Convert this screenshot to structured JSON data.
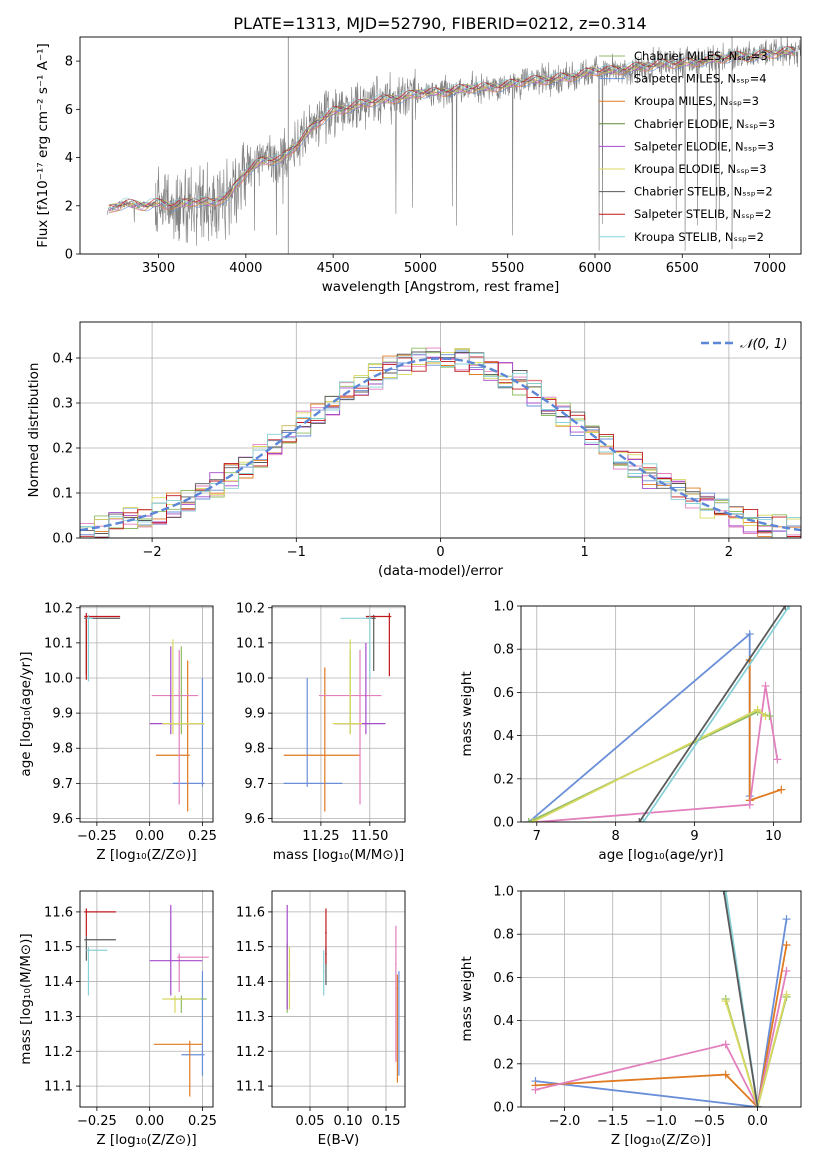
{
  "figure": {
    "title": "PLATE=1313, MJD=52790, FIBERID=0212, z=0.314"
  },
  "colors": {
    "blue": "#6a8fd8",
    "orange": "#e07a20",
    "pink": "#e27fbd",
    "green": "#8fbc62",
    "purple": "#a54bcb",
    "yellow": "#d8d860",
    "grey": "#5a5a5a",
    "red": "#c0171d",
    "cyan": "#88d2d8",
    "spectrum": "#808080",
    "gaussian": "#5c86d6",
    "grid": "#b0b0b0"
  },
  "chart_data": [
    {
      "id": "spectrum",
      "type": "line",
      "xlabel": "wavelength [Angstrom, rest frame]",
      "ylabel": "Flux [fλ10⁻¹⁷ erg cm⁻² s⁻¹ A⁻¹]",
      "xlim": [
        3050,
        7180
      ],
      "ylim": [
        0,
        9
      ],
      "xticks": [
        3500,
        4000,
        4500,
        5000,
        5500,
        6000,
        6500,
        7000
      ],
      "yticks": [
        0,
        2,
        4,
        6,
        8
      ],
      "grid": false,
      "legend_placement": "right",
      "legend": [
        {
          "text": "Chabrier MILES, Nₛₛₚ=3",
          "color": "#8fbc62"
        },
        {
          "text": "Salpeter MILES, Nₛₛₚ=4",
          "color": "#6a8fd8"
        },
        {
          "text": "Kroupa MILES, Nₛₛₚ=3",
          "color": "#e07a20"
        },
        {
          "text": "Chabrier ELODIE, Nₛₛₚ=3",
          "color": "#5e8a3a"
        },
        {
          "text": "Salpeter ELODIE, Nₛₛₚ=3",
          "color": "#a54bcb"
        },
        {
          "text": "Kroupa ELODIE, Nₛₛₚ=3",
          "color": "#d8d860"
        },
        {
          "text": "Chabrier STELIB, Nₛₛₚ=2",
          "color": "#5a5a5a"
        },
        {
          "text": "Salpeter STELIB, Nₛₛₚ=2",
          "color": "#c0171d"
        },
        {
          "text": "Kroupa STELIB, Nₛₛₚ=2",
          "color": "#88d2d8"
        }
      ],
      "model_continuum": {
        "x": [
          3200,
          3300,
          3400,
          3500,
          3600,
          3700,
          3800,
          3900,
          4000,
          4100,
          4200,
          4300,
          4400,
          4500,
          4600,
          4700,
          4800,
          4900,
          5000,
          5100,
          5200,
          5300,
          5400,
          5500,
          5600,
          5700,
          5800,
          5900,
          6000,
          6100,
          6200,
          6300,
          6400,
          6500,
          6600,
          6700,
          6800,
          6900,
          7000,
          7100
        ],
        "y": [
          1.8,
          2.1,
          2.0,
          2.1,
          2.0,
          2.2,
          2.1,
          2.4,
          3.4,
          3.9,
          3.9,
          4.6,
          5.4,
          5.9,
          6.1,
          6.3,
          6.4,
          6.5,
          6.7,
          6.7,
          6.8,
          6.9,
          6.9,
          7.0,
          7.2,
          7.2,
          7.3,
          7.4,
          7.6,
          7.6,
          7.7,
          7.8,
          7.9,
          7.9,
          8.0,
          8.1,
          8.2,
          8.2,
          8.3,
          8.4
        ]
      }
    },
    {
      "id": "residuals",
      "type": "histogram",
      "xlabel": "(data-model)/error",
      "ylabel": "Normed distribution",
      "xlim": [
        -2.5,
        2.5
      ],
      "ylim": [
        0,
        0.48
      ],
      "xticks": [
        -2,
        -1,
        0,
        1,
        2
      ],
      "yticks": [
        0.0,
        0.1,
        0.2,
        0.3,
        0.4
      ],
      "grid": true,
      "legend_placement": "top-right",
      "legend": [
        {
          "text": "𝒩(0, 1)",
          "color": "#5c86d6"
        }
      ],
      "bin_width": 0.1
    },
    {
      "id": "age_vs_Z",
      "type": "scatter",
      "xlabel": "Z [log₁₀(Z/Z⊙)]",
      "ylabel": "age  [log₁₀(age/yr)]",
      "xlim": [
        -0.33,
        0.3
      ],
      "ylim": [
        9.59,
        10.205
      ],
      "xticks": [
        -0.25,
        0.0,
        0.25
      ],
      "yticks": [
        9.6,
        9.7,
        9.8,
        9.9,
        10.0,
        10.1,
        10.2
      ],
      "grid": true
    },
    {
      "id": "age_vs_mass",
      "type": "scatter",
      "xlabel": "mass [log₁₀(M/M⊙)]",
      "ylabel": "",
      "xlim": [
        11.0,
        11.68
      ],
      "ylim": [
        9.59,
        10.205
      ],
      "xticks": [
        11.25,
        11.5
      ],
      "yticks": [
        9.6,
        9.7,
        9.8,
        9.9,
        10.0,
        10.1,
        10.2
      ],
      "grid": true
    },
    {
      "id": "weight_vs_age",
      "type": "line",
      "xlabel": "age  [log₁₀(age/yr)]",
      "ylabel": "mass weight",
      "xlim": [
        6.8,
        10.35
      ],
      "ylim": [
        0,
        1.0
      ],
      "xticks": [
        7,
        8,
        9,
        10
      ],
      "yticks": [
        0.0,
        0.2,
        0.4,
        0.6,
        0.8,
        1.0
      ],
      "grid": true,
      "series": [
        {
          "color": "#6a8fd8",
          "x": [
            6.9,
            9.7,
            9.7
          ],
          "y": [
            0.0,
            0.87,
            0.12
          ]
        },
        {
          "color": "#e07a20",
          "x": [
            9.7,
            9.7,
            10.1
          ],
          "y": [
            0.75,
            0.1,
            0.15
          ]
        },
        {
          "color": "#e27fbd",
          "x": [
            7.0,
            9.7,
            9.9,
            10.05
          ],
          "y": [
            0.0,
            0.08,
            0.63,
            0.29
          ]
        },
        {
          "color": "#8fbc62",
          "x": [
            6.9,
            9.8,
            9.95
          ],
          "y": [
            0.0,
            0.51,
            0.49
          ]
        },
        {
          "color": "#d8d860",
          "x": [
            6.95,
            9.8,
            9.9
          ],
          "y": [
            0.0,
            0.52,
            0.49
          ]
        },
        {
          "color": "#88d2d8",
          "x": [
            8.35,
            10.2
          ],
          "y": [
            0.0,
            1.0
          ]
        },
        {
          "color": "#5a5a5a",
          "x": [
            8.3,
            10.15
          ],
          "y": [
            0.0,
            1.0
          ]
        }
      ]
    },
    {
      "id": "mass_vs_Z",
      "type": "scatter",
      "xlabel": "Z [log₁₀(Z/Z⊙)]",
      "ylabel": "mass [log₁₀(M/M⊙)]",
      "xlim": [
        -0.33,
        0.3
      ],
      "ylim": [
        11.04,
        11.66
      ],
      "xticks": [
        -0.25,
        0.0,
        0.25
      ],
      "yticks": [
        11.1,
        11.2,
        11.3,
        11.4,
        11.5,
        11.6
      ],
      "grid": true
    },
    {
      "id": "mass_vs_ebv",
      "type": "scatter",
      "xlabel": "E(B-V)",
      "ylabel": "",
      "xlim": [
        0.0,
        0.175
      ],
      "ylim": [
        11.04,
        11.66
      ],
      "xticks": [
        0.05,
        0.1,
        0.15
      ],
      "yticks": [
        11.1,
        11.2,
        11.3,
        11.4,
        11.5,
        11.6
      ],
      "grid": true
    },
    {
      "id": "weight_vs_Z",
      "type": "line",
      "xlabel": "Z [log₁₀(Z/Z⊙)]",
      "ylabel": "mass weight",
      "xlim": [
        -2.45,
        0.45
      ],
      "ylim": [
        0,
        1.0
      ],
      "xticks": [
        -2.0,
        -1.5,
        -1.0,
        -0.5,
        0.0
      ],
      "yticks": [
        0.0,
        0.2,
        0.4,
        0.6,
        0.8,
        1.0
      ],
      "grid": true,
      "series": [
        {
          "color": "#6a8fd8",
          "x": [
            -2.3,
            0.0,
            0.3
          ],
          "y": [
            0.12,
            0.0,
            0.87
          ]
        },
        {
          "color": "#e07a20",
          "x": [
            -2.3,
            -0.33,
            0.0,
            0.3
          ],
          "y": [
            0.1,
            0.15,
            0.0,
            0.75
          ]
        },
        {
          "color": "#e27fbd",
          "x": [
            -2.3,
            -0.33,
            0.0,
            0.3
          ],
          "y": [
            0.08,
            0.29,
            0.0,
            0.63
          ]
        },
        {
          "color": "#8fbc62",
          "x": [
            -0.33,
            0.0,
            0.3
          ],
          "y": [
            0.5,
            0.0,
            0.51
          ]
        },
        {
          "color": "#d8d860",
          "x": [
            -0.33,
            0.0,
            0.3
          ],
          "y": [
            0.49,
            0.0,
            0.52
          ]
        },
        {
          "color": "#88d2d8",
          "x": [
            -0.33,
            0.0
          ],
          "y": [
            1.0,
            0.0
          ]
        },
        {
          "color": "#5a5a5a",
          "x": [
            -0.35,
            0.0
          ],
          "y": [
            1.0,
            0.0
          ]
        }
      ]
    }
  ]
}
